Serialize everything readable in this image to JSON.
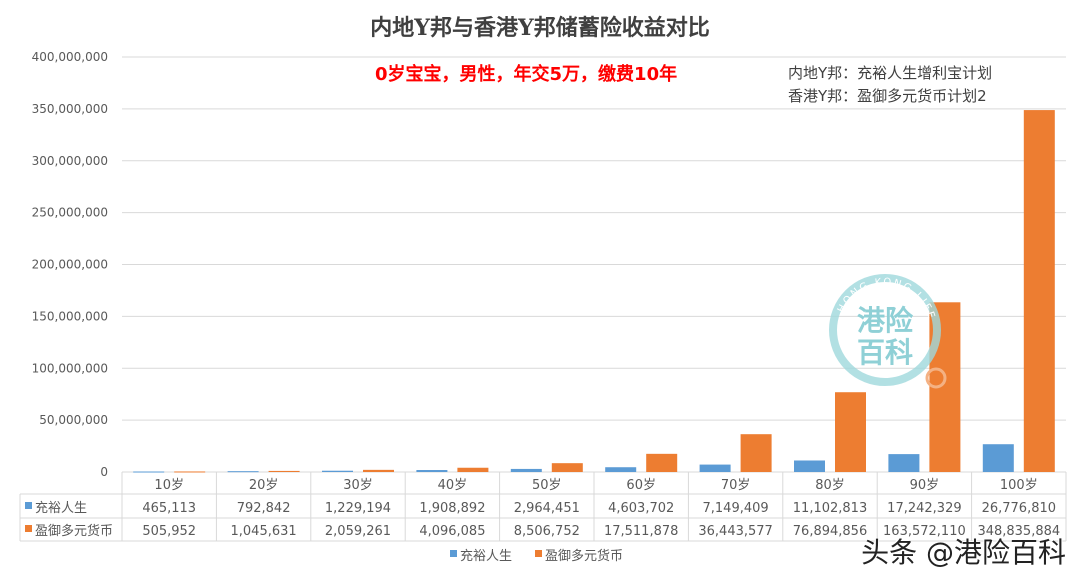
{
  "chart_data": {
    "type": "bar",
    "title": "内地Y邦与香港Y邦储蓄险收益对比",
    "subtitle": "0岁宝宝，男性，年交5万，缴费10年",
    "annotations": [
      "内地Y邦：充裕人生增利宝计划",
      "香港Y邦：盈御多元货币计划2"
    ],
    "categories": [
      "10岁",
      "20岁",
      "30岁",
      "40岁",
      "50岁",
      "60岁",
      "70岁",
      "80岁",
      "90岁",
      "100岁"
    ],
    "series": [
      {
        "name": "充裕人生",
        "color": "#5b9bd5",
        "values": [
          465113,
          792842,
          1229194,
          1908892,
          2964451,
          4603702,
          7149409,
          11102813,
          17242329,
          26776810
        ]
      },
      {
        "name": "盈御多元货币",
        "color": "#ed7d31",
        "values": [
          505952,
          1045631,
          2059261,
          4096085,
          8506752,
          17511878,
          36443577,
          76894856,
          163572110,
          348835884
        ]
      }
    ],
    "ylim": [
      0,
      400000000
    ],
    "yticks": [
      "0",
      "50,000,000",
      "100,000,000",
      "150,000,000",
      "200,000,000",
      "250,000,000",
      "300,000,000",
      "350,000,000",
      "400,000,000"
    ],
    "grid": true,
    "data_table": true,
    "legend": "bottom"
  },
  "logo": {
    "top_text": "HONG KONG LIFE",
    "line1": "港险",
    "line2": "百科"
  },
  "watermark": "头条 @港险百科"
}
